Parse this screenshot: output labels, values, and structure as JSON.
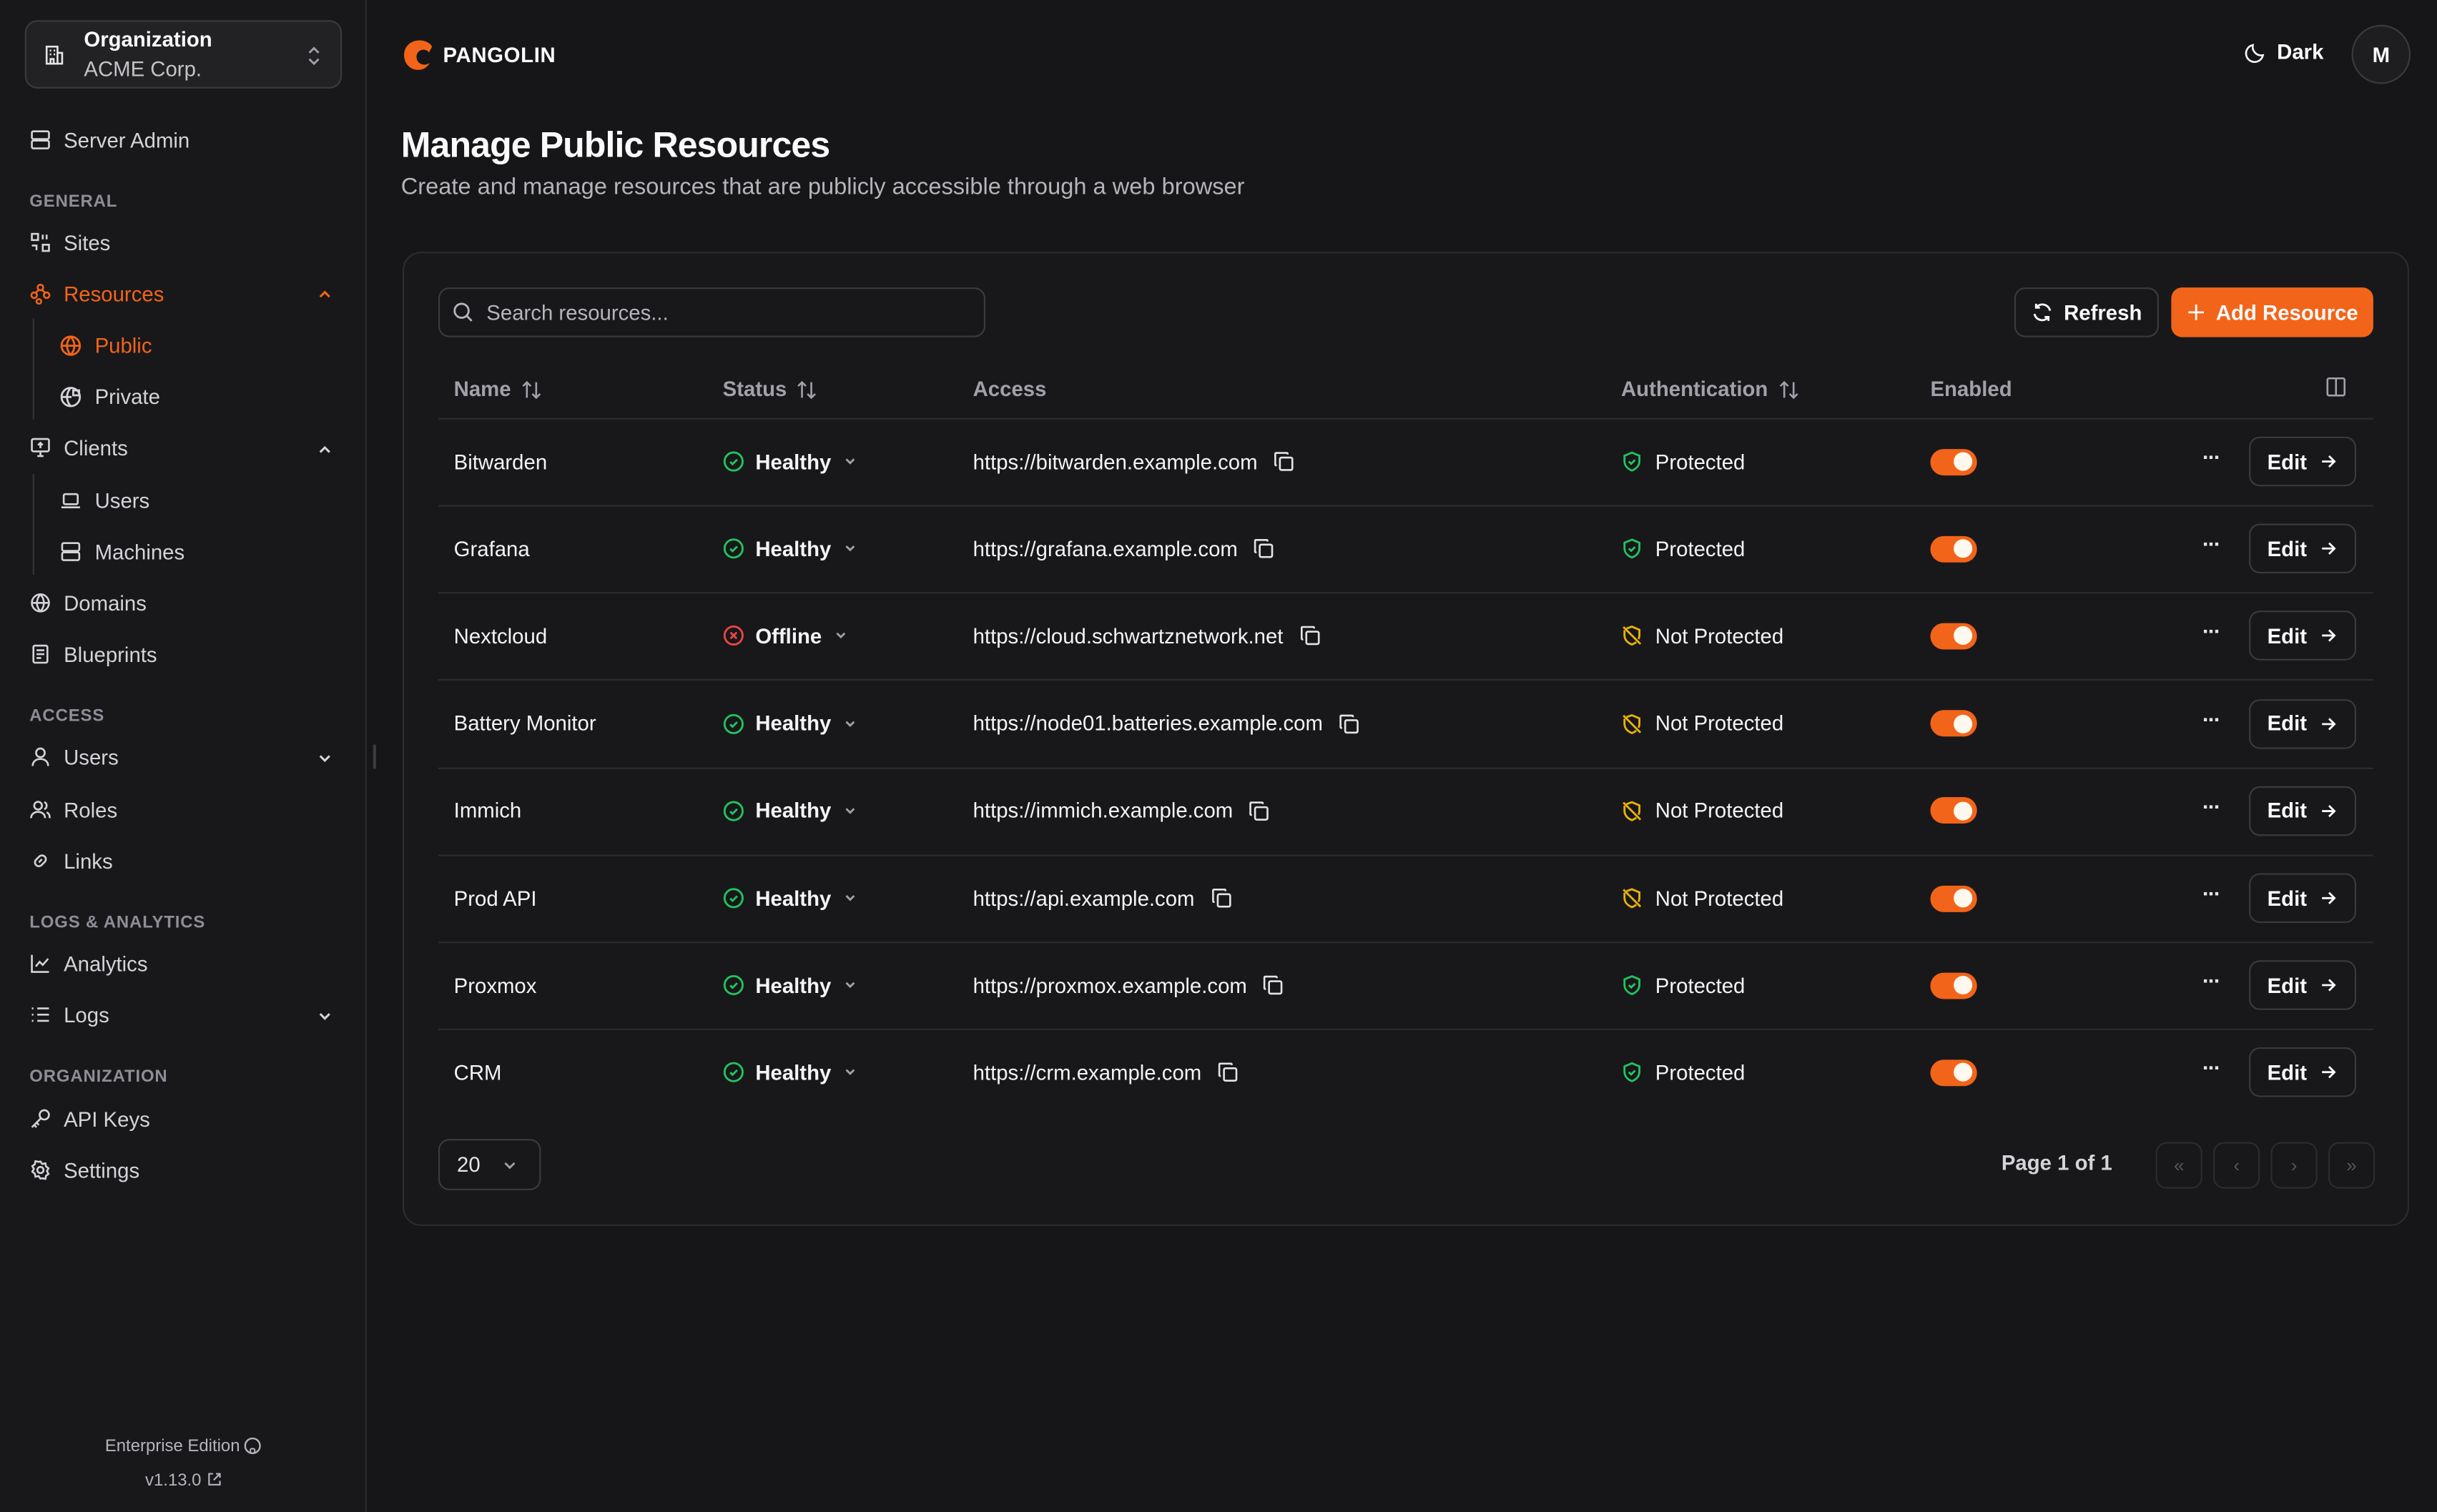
{
  "sidebar": {
    "org_label": "Organization",
    "org_name": "ACME Corp.",
    "server_admin": "Server Admin",
    "sections": {
      "general": "GENERAL",
      "access": "ACCESS",
      "logs": "LOGS & ANALYTICS",
      "organization": "ORGANIZATION"
    },
    "items": {
      "sites": "Sites",
      "resources": "Resources",
      "public": "Public",
      "private": "Private",
      "clients": "Clients",
      "users_client": "Users",
      "machines": "Machines",
      "domains": "Domains",
      "blueprints": "Blueprints",
      "users": "Users",
      "roles": "Roles",
      "links": "Links",
      "analytics": "Analytics",
      "logs": "Logs",
      "api_keys": "API Keys",
      "settings": "Settings"
    },
    "edition": "Enterprise Edition",
    "version": "v1.13.0"
  },
  "header": {
    "brand": "PANGOLIN",
    "theme": "Dark",
    "avatar": "M"
  },
  "page": {
    "title": "Manage Public Resources",
    "subtitle": "Create and manage resources that are publicly accessible through a web browser"
  },
  "toolbar": {
    "search_placeholder": "Search resources...",
    "refresh": "Refresh",
    "add": "Add Resource"
  },
  "table": {
    "columns": {
      "name": "Name",
      "status": "Status",
      "access": "Access",
      "auth": "Authentication",
      "enabled": "Enabled"
    },
    "edit_label": "Edit",
    "rows": [
      {
        "name": "Bitwarden",
        "status": "Healthy",
        "access": "https://bitwarden.example.com",
        "auth": "Protected",
        "enabled": true
      },
      {
        "name": "Grafana",
        "status": "Healthy",
        "access": "https://grafana.example.com",
        "auth": "Protected",
        "enabled": true
      },
      {
        "name": "Nextcloud",
        "status": "Offline",
        "access": "https://cloud.schwartznetwork.net",
        "auth": "Not Protected",
        "enabled": true
      },
      {
        "name": "Battery Monitor",
        "status": "Healthy",
        "access": "https://node01.batteries.example.com",
        "auth": "Not Protected",
        "enabled": true
      },
      {
        "name": "Immich",
        "status": "Healthy",
        "access": "https://immich.example.com",
        "auth": "Not Protected",
        "enabled": true
      },
      {
        "name": "Prod API",
        "status": "Healthy",
        "access": "https://api.example.com",
        "auth": "Not Protected",
        "enabled": true
      },
      {
        "name": "Proxmox",
        "status": "Healthy",
        "access": "https://proxmox.example.com",
        "auth": "Protected",
        "enabled": true
      },
      {
        "name": "CRM",
        "status": "Healthy",
        "access": "https://crm.example.com",
        "auth": "Protected",
        "enabled": true
      }
    ]
  },
  "pagination": {
    "page_size": "20",
    "page_text": "Page 1 of 1"
  },
  "colors": {
    "accent": "#f26419",
    "healthy": "#22c55e",
    "offline": "#ef4444",
    "warning": "#eab308"
  }
}
